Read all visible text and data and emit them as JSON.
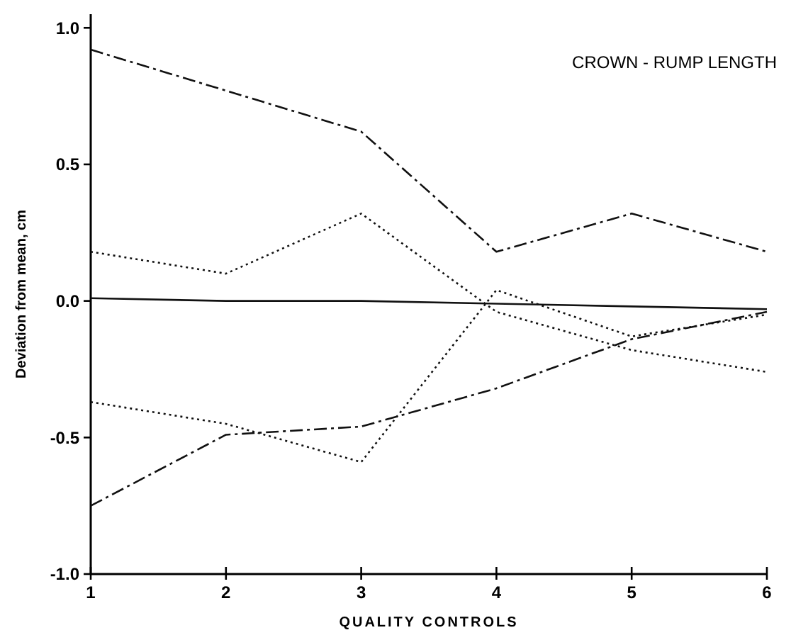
{
  "chart_data": {
    "type": "line",
    "title": "CROWN - RUMP LENGTH",
    "xlabel": "QUALITY CONTROLS",
    "ylabel": "Deviation from mean, cm",
    "x": [
      1,
      2,
      3,
      4,
      5,
      6
    ],
    "xlim": [
      1,
      6
    ],
    "xticks": [
      1,
      2,
      3,
      4,
      5,
      6
    ],
    "ylim": [
      -1.0,
      1.05
    ],
    "yticks": [
      {
        "value": -1,
        "label": "-1.0"
      },
      {
        "value": -0.5,
        "label": "-0.5"
      },
      {
        "value": 0,
        "label": "0.0"
      },
      {
        "value": 0.5,
        "label": "0.5"
      },
      {
        "value": 1,
        "label": "1.0"
      }
    ],
    "grid": false,
    "marker": "none",
    "series": [
      {
        "color": "#111111",
        "line_style": "dashed",
        "values": [
          0.92,
          0.77,
          0.62,
          0.18,
          0.32,
          0.18
        ]
      },
      {
        "color": "#111111",
        "line_style": "dotted",
        "values": [
          0.18,
          0.1,
          0.32,
          -0.04,
          -0.18,
          -0.26
        ]
      },
      {
        "color": "#111111",
        "line_style": "dotted",
        "values": [
          -0.37,
          -0.45,
          -0.59,
          0.04,
          -0.13,
          -0.05
        ]
      },
      {
        "color": "#111111",
        "line_style": "dashed",
        "values": [
          -0.75,
          -0.49,
          -0.46,
          -0.32,
          -0.14,
          -0.04
        ]
      },
      {
        "color": "#111111",
        "line_style": "solid",
        "values": [
          0.01,
          0,
          0,
          -0.01,
          -0.02,
          -0.03
        ]
      }
    ]
  }
}
